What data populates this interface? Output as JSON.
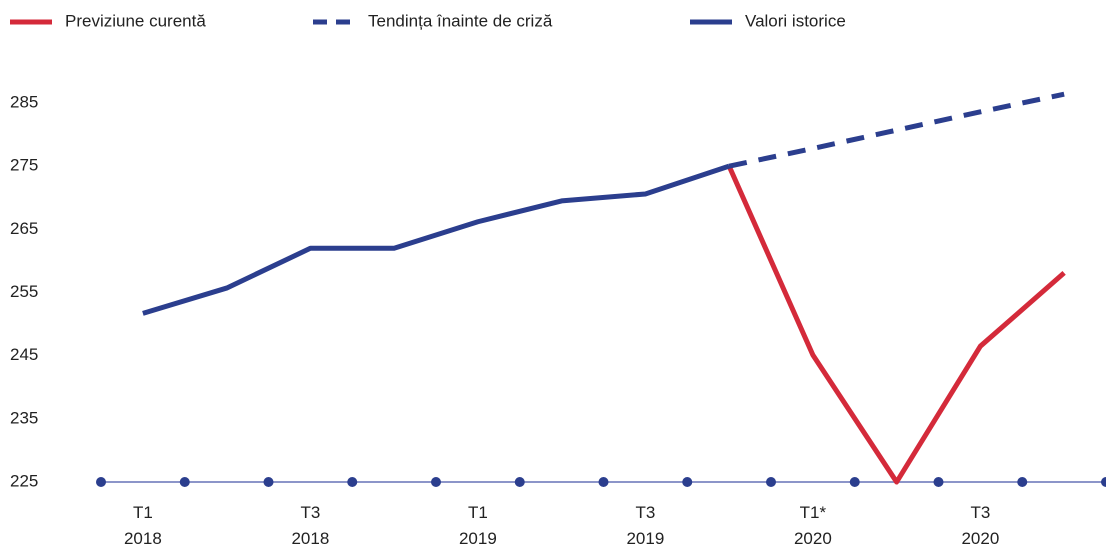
{
  "chart_data": {
    "type": "line",
    "categories": [
      "T1 2018",
      null,
      "T3 2018",
      null,
      "T1 2019",
      null,
      "T3 2019",
      null,
      "T1* 2020",
      null,
      "T3 2020",
      null
    ],
    "series": [
      {
        "name": "Previziune curentă",
        "color": "#d42a3a",
        "style": "solid",
        "values": [
          null,
          null,
          null,
          null,
          null,
          null,
          null,
          275,
          245.1,
          225,
          246.5,
          258.1
        ]
      },
      {
        "name": "Tendința înainte de criză",
        "color": "#2b3e8e",
        "style": "dashed",
        "values": [
          null,
          null,
          null,
          null,
          null,
          null,
          null,
          275,
          277.8,
          280.7,
          283.6,
          286.4
        ]
      },
      {
        "name": "Valori istorice",
        "color": "#2b3e8e",
        "style": "solid",
        "values": [
          251.7,
          255.7,
          262,
          262,
          266.2,
          269.5,
          270.6,
          275,
          null,
          null,
          null,
          null
        ]
      }
    ],
    "ylim": [
      225,
      285
    ],
    "yticks": [
      225,
      235,
      245,
      255,
      265,
      275,
      285
    ]
  }
}
